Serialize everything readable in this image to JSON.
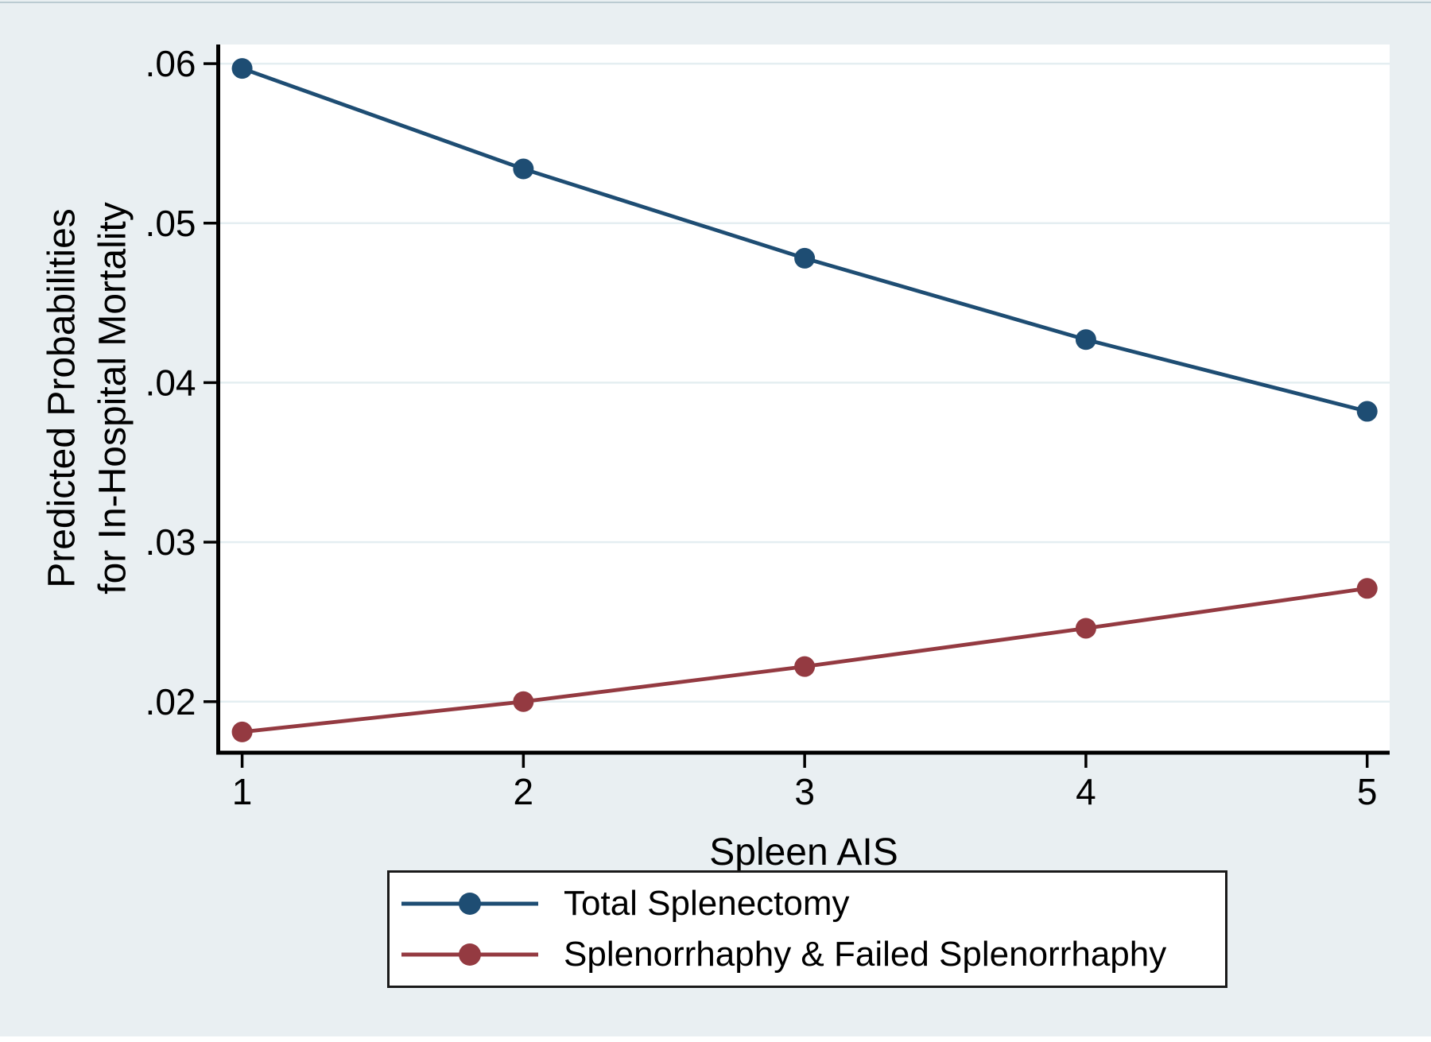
{
  "figure": {
    "background": "#e9eff2",
    "plot_background": "#ffffff",
    "axis_color": "#000000",
    "gridline_color": "#e4eef1",
    "legend_border_color": "#1a1a1a"
  },
  "chart_data": {
    "type": "line",
    "title": "",
    "xlabel": "Spleen AIS",
    "ylabel_lines": [
      "Predicted Probabilities",
      "for In-Hospital Mortality"
    ],
    "x": [
      1,
      2,
      3,
      4,
      5
    ],
    "series": [
      {
        "name": "Total Splenectomy",
        "color": "#1e4d73",
        "values": [
          0.0597,
          0.0534,
          0.0478,
          0.0427,
          0.0382
        ]
      },
      {
        "name": "Splenorrhaphy & Failed Splenorrhaphy",
        "color": "#943a41",
        "values": [
          0.0181,
          0.02,
          0.0222,
          0.0246,
          0.0271
        ]
      }
    ],
    "xticks": {
      "values": [
        1,
        2,
        3,
        4,
        5
      ],
      "labels": [
        "1",
        "2",
        "3",
        "4",
        "5"
      ]
    },
    "yticks": {
      "values": [
        0.02,
        0.03,
        0.04,
        0.05,
        0.06
      ],
      "labels": [
        ".02",
        ".03",
        ".04",
        ".05",
        ".06"
      ]
    },
    "xlim": [
      0.915,
      5.08
    ],
    "ylim": [
      0.0168,
      0.0612
    ],
    "grid": "horizontal",
    "legend_position": "bottom-center",
    "marker": "filled-circle"
  }
}
